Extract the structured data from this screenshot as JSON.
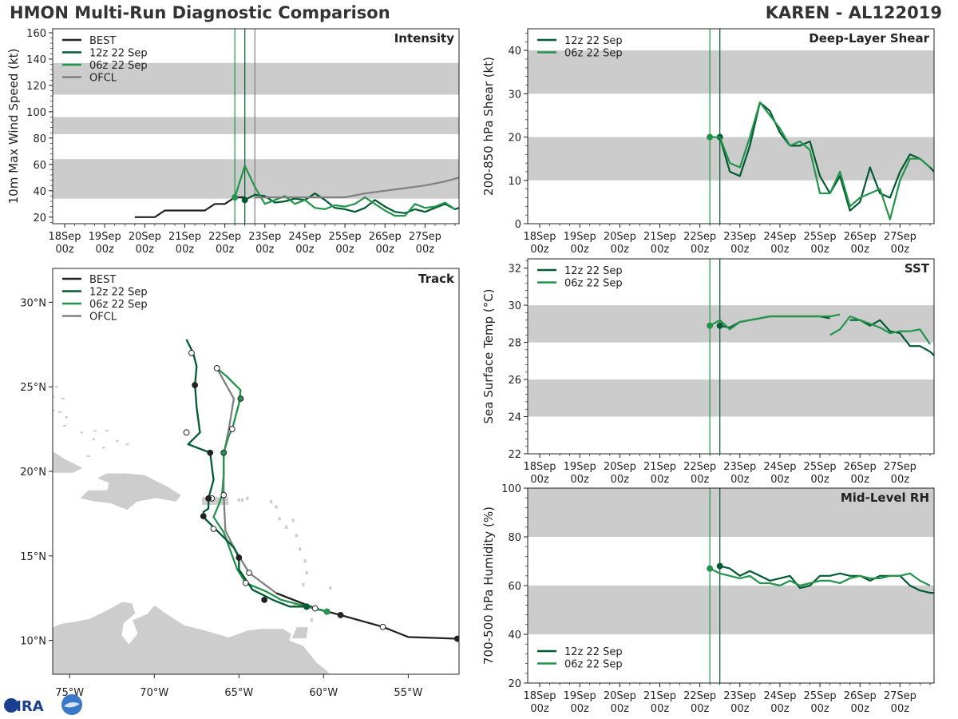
{
  "header": {
    "title": "HMON Multi-Run Diagnostic Comparison",
    "storm": "KAREN - AL122019"
  },
  "logo": {
    "text": "CIRA",
    "icon": "cira-logo-icon"
  },
  "colors": {
    "best": "#222222",
    "run12": "#005a32",
    "run06": "#23944a",
    "ofcl": "#808080",
    "band": "#cccccc",
    "land": "#cdcdcd",
    "current_line": "#005a32",
    "prev_line": "#23944a"
  },
  "time_axis": {
    "ticks": [
      {
        "day": "18Sep",
        "hour": "00z"
      },
      {
        "day": "19Sep",
        "hour": "00z"
      },
      {
        "day": "20Sep",
        "hour": "00z"
      },
      {
        "day": "21Sep",
        "hour": "00z"
      },
      {
        "day": "22Sep",
        "hour": "00z"
      },
      {
        "day": "23Sep",
        "hour": "00z"
      },
      {
        "day": "24Sep",
        "hour": "00z"
      },
      {
        "day": "25Sep",
        "hour": "00z"
      },
      {
        "day": "26Sep",
        "hour": "00z"
      },
      {
        "day": "27Sep",
        "hour": "00z"
      }
    ]
  },
  "chart_data": [
    {
      "type": "line",
      "id": "intensity",
      "title": "Intensity",
      "ylabel": "10m Max Wind Speed (kt)",
      "xlim_days": [
        17.7,
        27.85
      ],
      "ylim": [
        15,
        163
      ],
      "yticks": [
        20,
        40,
        60,
        80,
        100,
        120,
        140,
        160
      ],
      "bands": [
        [
          34,
          64
        ],
        [
          83,
          96
        ],
        [
          113,
          137
        ]
      ],
      "vlines": [
        {
          "x": 22.25,
          "color_key": "prev_line"
        },
        {
          "x": 22.5,
          "color_key": "current_line"
        },
        {
          "x": 22.75,
          "color_key": "ofcl"
        }
      ],
      "legend": [
        "BEST",
        "12z 22 Sep",
        "06z 22 Sep",
        "OFCL"
      ],
      "series": [
        {
          "name": "BEST",
          "color_key": "best",
          "x": [
            19.75,
            20,
            20.25,
            20.5,
            20.75,
            21,
            21.25,
            21.5,
            21.75,
            22,
            22.25,
            22.5
          ],
          "y": [
            20,
            20,
            20,
            25,
            25,
            25,
            25,
            25,
            30,
            30,
            35,
            35
          ]
        },
        {
          "name": "12z 22 Sep",
          "color_key": "run12",
          "start_marker": true,
          "x": [
            22.5,
            22.75,
            23,
            23.25,
            23.5,
            23.75,
            24,
            24.25,
            24.5,
            24.75,
            25,
            25.25,
            25.5,
            25.75,
            26,
            26.25,
            26.5,
            26.75,
            27,
            27.25,
            27.5,
            27.75,
            27.85
          ],
          "y": [
            33,
            37,
            36,
            31,
            32,
            34,
            33,
            38,
            33,
            27,
            26,
            24,
            27,
            33,
            28,
            24,
            23,
            26,
            24,
            27,
            30,
            26,
            27
          ]
        },
        {
          "name": "06z 22 Sep",
          "color_key": "run06",
          "start_marker": true,
          "x": [
            22.25,
            22.5,
            22.75,
            23,
            23.25,
            23.5,
            23.75,
            24,
            24.25,
            24.5,
            24.75,
            25,
            25.25,
            25.5,
            25.75,
            26,
            26.25,
            26.5,
            26.75,
            27,
            27.25,
            27.5,
            27.75
          ],
          "y": [
            35,
            59,
            43,
            30,
            33,
            36,
            30,
            33,
            27,
            26,
            29,
            28,
            30,
            35,
            30,
            25,
            21,
            21,
            30,
            27,
            28,
            31,
            26
          ]
        },
        {
          "name": "OFCL",
          "color_key": "ofcl",
          "x": [
            22.75,
            23,
            23.5,
            24,
            24.5,
            25,
            25.5,
            26,
            26.5,
            27,
            27.5,
            27.85
          ],
          "y": [
            35,
            35,
            35,
            35,
            35,
            35,
            38,
            40,
            42,
            44,
            47,
            50
          ]
        }
      ]
    },
    {
      "type": "line",
      "id": "shear",
      "title": "Deep-Layer Shear",
      "ylabel": "200-850 hPa Shear (kt)",
      "xlim_days": [
        17.7,
        27.85
      ],
      "ylim": [
        0,
        45
      ],
      "yticks": [
        0,
        10,
        20,
        30,
        40
      ],
      "bands": [
        [
          10,
          20
        ],
        [
          30,
          40
        ]
      ],
      "vlines": [
        {
          "x": 22.25,
          "color_key": "prev_line"
        },
        {
          "x": 22.5,
          "color_key": "current_line"
        }
      ],
      "legend": [
        "12z 22 Sep",
        "06z 22 Sep"
      ],
      "series": [
        {
          "name": "12z 22 Sep",
          "color_key": "run12",
          "start_marker": true,
          "x": [
            22.5,
            22.75,
            23,
            23.25,
            23.5,
            23.75,
            24,
            24.25,
            24.5,
            24.75,
            25,
            25.25,
            25.5,
            25.75,
            26,
            26.25,
            26.5,
            26.75,
            27,
            27.25,
            27.5,
            27.75,
            27.85
          ],
          "y": [
            20,
            12,
            11,
            18,
            28,
            26,
            21,
            18,
            18,
            19,
            11,
            7,
            11,
            3,
            5,
            13,
            7,
            6,
            12,
            16,
            15,
            13,
            12
          ]
        },
        {
          "name": "06z 22 Sep",
          "color_key": "run06",
          "start_marker": true,
          "x": [
            22.25,
            22.5,
            22.75,
            23,
            23.25,
            23.5,
            23.75,
            24,
            24.25,
            24.5,
            24.75,
            25,
            25.25,
            25.5,
            25.75,
            26,
            26.25,
            26.5,
            26.75,
            27,
            27.25,
            27.5,
            27.75
          ],
          "y": [
            20,
            20,
            14,
            13,
            20,
            28,
            25,
            22,
            18,
            19,
            17,
            7,
            7,
            12,
            4,
            6,
            7,
            8,
            1,
            10,
            15,
            15,
            13
          ]
        }
      ]
    },
    {
      "type": "line",
      "id": "sst",
      "title": "SST",
      "ylabel": "Sea Surface Temp (°C)",
      "xlim_days": [
        17.7,
        27.85
      ],
      "ylim": [
        22,
        32.5
      ],
      "yticks": [
        22,
        24,
        26,
        28,
        30,
        32
      ],
      "bands": [
        [
          24,
          26
        ],
        [
          28,
          30
        ]
      ],
      "vlines": [
        {
          "x": 22.25,
          "color_key": "prev_line"
        },
        {
          "x": 22.5,
          "color_key": "current_line"
        }
      ],
      "legend": [
        "12z 22 Sep",
        "06z 22 Sep"
      ],
      "series": [
        {
          "name": "12z 22 Sep",
          "color_key": "run12",
          "start_marker": true,
          "x": [
            22.5,
            22.75,
            23,
            23.25,
            23.5,
            23.75,
            24,
            24.25,
            24.5,
            24.75,
            25,
            25.25
          ],
          "y": [
            28.9,
            28.8,
            29.1,
            29.2,
            29.3,
            29.4,
            29.4,
            29.4,
            29.4,
            29.4,
            29.4,
            29.3
          ],
          "x2": [
            25.75,
            26,
            26.25,
            26.5,
            26.75,
            27,
            27.25,
            27.5,
            27.75,
            27.85
          ],
          "y2": [
            29.2,
            29.2,
            28.9,
            29.2,
            28.6,
            28.5,
            27.8,
            27.8,
            27.5,
            27.3
          ]
        },
        {
          "name": "06z 22 Sep",
          "color_key": "run06",
          "start_marker": true,
          "x": [
            22.25,
            22.5,
            22.75,
            23,
            23.25,
            23.5,
            23.75,
            24,
            24.25,
            24.5,
            24.75,
            25,
            25.25,
            25.5
          ],
          "y": [
            28.9,
            29.2,
            28.7,
            29.1,
            29.2,
            29.3,
            29.4,
            29.4,
            29.4,
            29.4,
            29.4,
            29.4,
            29.4,
            29.5
          ],
          "x2": [
            25.25,
            25.5,
            25.75,
            26,
            26.25,
            26.5,
            26.75,
            27,
            27.25,
            27.5,
            27.75
          ],
          "y2": [
            28.4,
            28.7,
            29.4,
            29.2,
            29.0,
            28.8,
            28.5,
            28.6,
            28.6,
            28.7,
            27.9
          ]
        }
      ]
    },
    {
      "type": "line",
      "id": "rh",
      "title": "Mid-Level RH",
      "ylabel": "700-500 hPa Humidity (%)",
      "xlim_days": [
        17.7,
        27.85
      ],
      "ylim": [
        20,
        100
      ],
      "yticks": [
        20,
        40,
        60,
        80,
        100
      ],
      "bands": [
        [
          40,
          60
        ],
        [
          80,
          100
        ]
      ],
      "vlines": [
        {
          "x": 22.25,
          "color_key": "prev_line"
        },
        {
          "x": 22.5,
          "color_key": "current_line"
        }
      ],
      "legend": [
        "12z 22 Sep",
        "06z 22 Sep"
      ],
      "series": [
        {
          "name": "12z 22 Sep",
          "color_key": "run12",
          "start_marker": true,
          "x": [
            22.5,
            22.75,
            23,
            23.25,
            23.5,
            23.75,
            24,
            24.25,
            24.5,
            24.75,
            25,
            25.25,
            25.5,
            25.75,
            26,
            26.25,
            26.5,
            26.75,
            27,
            27.25,
            27.5,
            27.75,
            27.85
          ],
          "y": [
            68,
            67,
            64,
            66,
            64,
            62,
            63,
            64,
            59,
            60,
            64,
            64,
            65,
            64,
            64,
            62,
            64,
            64,
            64,
            60,
            58,
            57,
            57
          ]
        },
        {
          "name": "06z 22 Sep",
          "color_key": "run06",
          "start_marker": true,
          "x": [
            22.25,
            22.5,
            22.75,
            23,
            23.25,
            23.5,
            23.75,
            24,
            24.25,
            24.5,
            24.75,
            25,
            25.25,
            25.5,
            25.75,
            26,
            26.25,
            26.5,
            26.75,
            27,
            27.25,
            27.5,
            27.75
          ],
          "y": [
            67,
            65,
            64,
            63,
            64,
            61,
            61,
            60,
            62,
            60,
            61,
            62,
            62,
            61,
            63,
            64,
            63,
            63,
            64,
            64,
            65,
            62,
            60
          ]
        }
      ]
    },
    {
      "type": "scatter",
      "id": "track",
      "title": "Track",
      "xlim": [
        -76,
        -52
      ],
      "ylim": [
        8,
        32
      ],
      "xticks": [
        {
          "v": -75,
          "l": "75°W"
        },
        {
          "v": -70,
          "l": "70°W"
        },
        {
          "v": -65,
          "l": "65°W"
        },
        {
          "v": -60,
          "l": "60°W"
        },
        {
          "v": -55,
          "l": "55°W"
        }
      ],
      "yticks": [
        {
          "v": 10,
          "l": "10°N"
        },
        {
          "v": 15,
          "l": "15°N"
        },
        {
          "v": 20,
          "l": "20°N"
        },
        {
          "v": 25,
          "l": "25°N"
        },
        {
          "v": 30,
          "l": "30°N"
        }
      ],
      "legend": [
        "BEST",
        "12z 22 Sep",
        "06z 22 Sep",
        "OFCL"
      ],
      "series": [
        {
          "name": "BEST",
          "color_key": "best",
          "lon": [
            -52.1,
            -55,
            -56.5,
            -59,
            -60.5,
            -62.8
          ],
          "lat": [
            10.1,
            10.2,
            10.8,
            11.5,
            11.9,
            12.8
          ],
          "markers": [
            {
              "lon": -52.1,
              "lat": 10.1,
              "fill": "filled"
            },
            {
              "lon": -56.5,
              "lat": 10.8,
              "fill": "open"
            },
            {
              "lon": -59,
              "lat": 11.5,
              "fill": "filled"
            },
            {
              "lon": -60.5,
              "lat": 11.9,
              "fill": "open"
            }
          ]
        },
        {
          "name": "12z 22 Sep",
          "color_key": "run12",
          "lon": [
            -61,
            -62,
            -63,
            -64.2,
            -65,
            -65,
            -65.3,
            -66,
            -67,
            -67.1,
            -66.8,
            -66.8,
            -66.5,
            -66.7,
            -68,
            -67.3,
            -67.5,
            -67.6,
            -67.5,
            -67.7,
            -68.1
          ],
          "lat": [
            12,
            12,
            12.4,
            13,
            14.2,
            14.9,
            15.5,
            16.2,
            17.2,
            17.6,
            17.8,
            18.4,
            19.5,
            21.1,
            21.6,
            22.3,
            23.8,
            25.1,
            26.2,
            27,
            27.8
          ],
          "markers": [
            {
              "lon": -61,
              "lat": 12,
              "fill": "filled"
            },
            {
              "lon": -63.5,
              "lat": 12.4,
              "fill": "filled"
            },
            {
              "lon": -65,
              "lat": 14.9,
              "fill": "filled"
            },
            {
              "lon": -67.1,
              "lat": 17.35,
              "fill": "filled"
            },
            {
              "lon": -66.8,
              "lat": 18.4,
              "fill": "filled"
            },
            {
              "lon": -66.7,
              "lat": 21.1,
              "fill": "filled"
            },
            {
              "lon": -68.1,
              "lat": 22.3,
              "fill": "open"
            },
            {
              "lon": -67.6,
              "lat": 25.1,
              "fill": "filled"
            },
            {
              "lon": -67.8,
              "lat": 27,
              "fill": "open"
            }
          ]
        },
        {
          "name": "06z 22 Sep",
          "color_key": "run06",
          "lon": [
            -59.8,
            -61,
            -62.5,
            -63.4,
            -64.6,
            -65.1,
            -65.9,
            -66.5,
            -66.2,
            -66,
            -65.9,
            -65.9,
            -65.6,
            -65.4,
            -65,
            -64.9,
            -65.7,
            -66.3
          ],
          "lat": [
            11.7,
            12,
            12.4,
            12.9,
            13.4,
            14.2,
            16.4,
            17.3,
            18,
            18.6,
            19.8,
            21.1,
            22.1,
            22.5,
            24,
            24.8,
            25.6,
            26.1
          ],
          "markers": [
            {
              "lon": -59.8,
              "lat": 11.7,
              "fill": "filled"
            },
            {
              "lon": -64.6,
              "lat": 13.4,
              "fill": "open"
            },
            {
              "lon": -66.5,
              "lat": 16.6,
              "fill": "open"
            },
            {
              "lon": -66.6,
              "lat": 18.4,
              "fill": "open"
            },
            {
              "lon": -65.9,
              "lat": 21.1,
              "fill": "filled"
            },
            {
              "lon": -65.4,
              "lat": 22.5,
              "fill": "open"
            },
            {
              "lon": -64.9,
              "lat": 24.3,
              "fill": "filled"
            },
            {
              "lon": -66.3,
              "lat": 26.1,
              "fill": "open"
            }
          ]
        },
        {
          "name": "OFCL",
          "color_key": "ofcl",
          "lon": [
            -60.5,
            -62.8,
            -64.4,
            -65.3,
            -65.8,
            -65.9,
            -65.9,
            -65.6,
            -65.3,
            -66.3
          ],
          "lat": [
            11.9,
            12.8,
            14,
            15.5,
            16.5,
            18.6,
            21,
            22.5,
            24.3,
            26.1
          ],
          "markers": [
            {
              "lon": -64.4,
              "lat": 14,
              "fill": "open"
            },
            {
              "lon": -65.9,
              "lat": 18.6,
              "fill": "open"
            }
          ]
        }
      ]
    }
  ]
}
